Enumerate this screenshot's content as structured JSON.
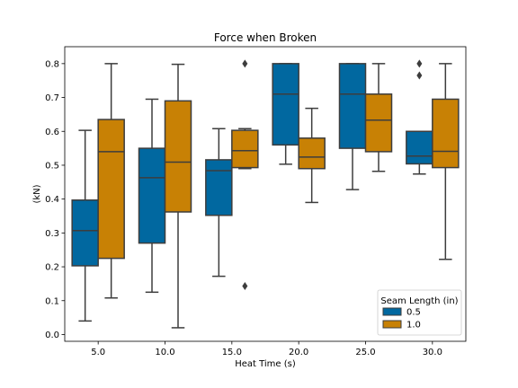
{
  "chart_data": {
    "type": "box",
    "title": "Force when Broken",
    "xlabel": "Heat Time (s)",
    "ylabel": "(kN)",
    "ylim": [
      -0.02,
      0.85
    ],
    "yticks": [
      0.0,
      0.1,
      0.2,
      0.3,
      0.4,
      0.5,
      0.6,
      0.7,
      0.8
    ],
    "ytick_labels": [
      "0.0",
      "0.1",
      "0.2",
      "0.3",
      "0.4",
      "0.5",
      "0.6",
      "0.7",
      "0.8"
    ],
    "categories": [
      "5.0",
      "10.0",
      "15.0",
      "20.0",
      "25.0",
      "30.0"
    ],
    "grid": false,
    "legend": {
      "title": "Seam Length (in)",
      "placement": "lower-right"
    },
    "series": [
      {
        "name": "0.5",
        "color": "#0173b2",
        "boxes": [
          {
            "whislo": 0.04,
            "q1": 0.203,
            "median": 0.307,
            "q3": 0.397,
            "whishi": 0.603,
            "fliers": []
          },
          {
            "whislo": 0.125,
            "q1": 0.27,
            "median": 0.463,
            "q3": 0.55,
            "whishi": 0.695,
            "fliers": []
          },
          {
            "whislo": 0.172,
            "q1": 0.352,
            "median": 0.484,
            "q3": 0.516,
            "whishi": 0.608,
            "fliers": []
          },
          {
            "whislo": 0.503,
            "q1": 0.56,
            "median": 0.71,
            "q3": 0.8,
            "whishi": 0.8,
            "fliers": []
          },
          {
            "whislo": 0.428,
            "q1": 0.55,
            "median": 0.71,
            "q3": 0.8,
            "whishi": 0.8,
            "fliers": []
          },
          {
            "whislo": 0.474,
            "q1": 0.504,
            "median": 0.527,
            "q3": 0.6,
            "whishi": 0.6,
            "fliers": [
              0.765,
              0.8
            ]
          }
        ]
      },
      {
        "name": "1.0",
        "color": "#de8f05",
        "boxes": [
          {
            "whislo": 0.108,
            "q1": 0.225,
            "median": 0.54,
            "q3": 0.635,
            "whishi": 0.8,
            "fliers": []
          },
          {
            "whislo": 0.02,
            "q1": 0.362,
            "median": 0.509,
            "q3": 0.69,
            "whishi": 0.798,
            "fliers": []
          },
          {
            "whislo": 0.49,
            "q1": 0.493,
            "median": 0.543,
            "q3": 0.603,
            "whishi": 0.608,
            "fliers": [
              0.143,
              0.8
            ]
          },
          {
            "whislo": 0.39,
            "q1": 0.49,
            "median": 0.524,
            "q3": 0.58,
            "whishi": 0.668,
            "fliers": []
          },
          {
            "whislo": 0.482,
            "q1": 0.54,
            "median": 0.633,
            "q3": 0.71,
            "whishi": 0.8,
            "fliers": []
          },
          {
            "whislo": 0.222,
            "q1": 0.493,
            "median": 0.541,
            "q3": 0.695,
            "whishi": 0.8,
            "fliers": []
          }
        ]
      }
    ]
  }
}
